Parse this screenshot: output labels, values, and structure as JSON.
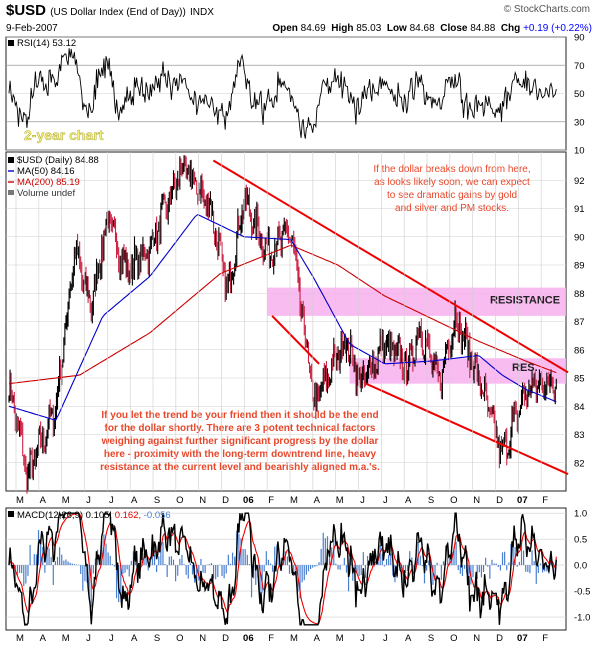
{
  "header": {
    "symbol": "$USD",
    "description": "(US Dollar Index (End of Day))",
    "exchange": "INDX",
    "credit": "© StockCharts.com",
    "date": "9-Feb-2007",
    "ohlc": {
      "open_label": "Open",
      "open": "84.69",
      "high_label": "High",
      "high": "85.03",
      "low_label": "Low",
      "low": "84.68",
      "close_label": "Close",
      "close": "84.88",
      "chg_label": "Chg",
      "chg": "+0.19 (+0.22%)"
    }
  },
  "colors": {
    "price": "#000000",
    "down": "#cc2244",
    "ma50": "#0000cc",
    "ma200": "#cc0000",
    "trend": "#ee0000",
    "resistance_band": "#f7b0ee",
    "annotation": "#e8472a",
    "macd": "#000000",
    "signal": "#ee0000",
    "histogram": "#4a7fd0",
    "rsi_band": "#cc3355"
  },
  "chart_data": [
    {
      "type": "line",
      "panel": "rsi",
      "legend": "RSI(14) 53.12",
      "ylim": [
        10,
        90
      ],
      "yticks": [
        10,
        30,
        50,
        70,
        90
      ],
      "guides": [
        30,
        70
      ],
      "last": 53.12
    },
    {
      "type": "line",
      "panel": "price",
      "badge": "2-year chart",
      "legend": {
        "price": "$USD (Daily) 84.88",
        "ma50": "MA(50) 84.16",
        "ma200": "MA(200) 85.19",
        "volume": "Volume undef"
      },
      "ylim": [
        81,
        93
      ],
      "yticks": [
        82,
        83,
        84,
        85,
        86,
        87,
        88,
        89,
        90,
        91,
        92
      ],
      "x_ticks": [
        "M",
        "A",
        "M",
        "J",
        "J",
        "A",
        "S",
        "O",
        "N",
        "D",
        "06",
        "F",
        "M",
        "A",
        "M",
        "J",
        "J",
        "A",
        "S",
        "O",
        "N",
        "D",
        "07",
        "F"
      ],
      "anchors_months": [
        0,
        0.8,
        2,
        2.8,
        3.5,
        4.2,
        5,
        6,
        7.4,
        8.6,
        9.3,
        10,
        11,
        12,
        13,
        14.3,
        15,
        16,
        17,
        17.5,
        18.3,
        19,
        20,
        21,
        22,
        22.5,
        23.3
      ],
      "anchors_price": [
        84.8,
        81.5,
        84.0,
        89.5,
        87.5,
        90.7,
        88.8,
        89.6,
        92.5,
        91.0,
        88.0,
        91.3,
        89.5,
        90.2,
        84.0,
        86.4,
        84.8,
        86.2,
        85.4,
        86.8,
        84.8,
        87.2,
        85.0,
        82.3,
        84.5,
        84.8,
        84.88
      ],
      "ma50_months": [
        0,
        2,
        4,
        6,
        8,
        10,
        12,
        13,
        14.5,
        16,
        18,
        20,
        21,
        22,
        23.3
      ],
      "ma50": [
        84.0,
        83.5,
        87.2,
        88.6,
        90.8,
        90.0,
        89.9,
        88.5,
        86.2,
        85.5,
        85.6,
        85.8,
        85.1,
        84.6,
        84.16
      ],
      "ma200_months": [
        0,
        3,
        6,
        9,
        12,
        14,
        16,
        18,
        20,
        22,
        23.3
      ],
      "ma200": [
        84.8,
        85.1,
        86.6,
        88.7,
        89.7,
        89.0,
        87.9,
        87.1,
        86.3,
        85.6,
        85.19
      ],
      "trendlines": [
        {
          "from_month": 8.7,
          "from_price": 92.7,
          "to_month": 23.8,
          "to_price": 85.2
        },
        {
          "from_month": 11.2,
          "from_price": 87.2,
          "to_month": 13.2,
          "to_price": 85.5
        },
        {
          "from_month": 15.2,
          "from_price": 84.8,
          "to_month": 23.8,
          "to_price": 81.6
        }
      ],
      "resistance_zones": [
        {
          "label": "RESISTANCE",
          "low": 87.2,
          "high": 88.2
        },
        {
          "label": "RES.",
          "low": 84.8,
          "high": 85.7
        }
      ],
      "annotations": [
        "If the dollar breaks down from here,",
        "as looks likely soon, we can expect",
        "to see dramatic gains by gold",
        "and silver and PM stocks."
      ],
      "annotations_lower": [
        "If you let the trend be your friend then it should be the end",
        "for the dollar shortly. There are 3 potent technical factors",
        "weighing against further significant progress by the dollar",
        "here - proximity with the long-term downtrend line, heavy",
        "resistance at the current level and bearishly aligned m.a.'s."
      ]
    },
    {
      "type": "line",
      "panel": "macd",
      "legend": {
        "name": "MACD(12,26,9)",
        "macd": "0.105",
        "signal": "0.162",
        "hist": "-0.056"
      },
      "ylim": [
        -1.25,
        1.1
      ],
      "yticks": [
        "1.0",
        "0.5",
        "0.0",
        "-0.5",
        "-1.0"
      ],
      "ytick_values": [
        1.0,
        0.5,
        0.0,
        -0.5,
        -1.0
      ]
    }
  ]
}
